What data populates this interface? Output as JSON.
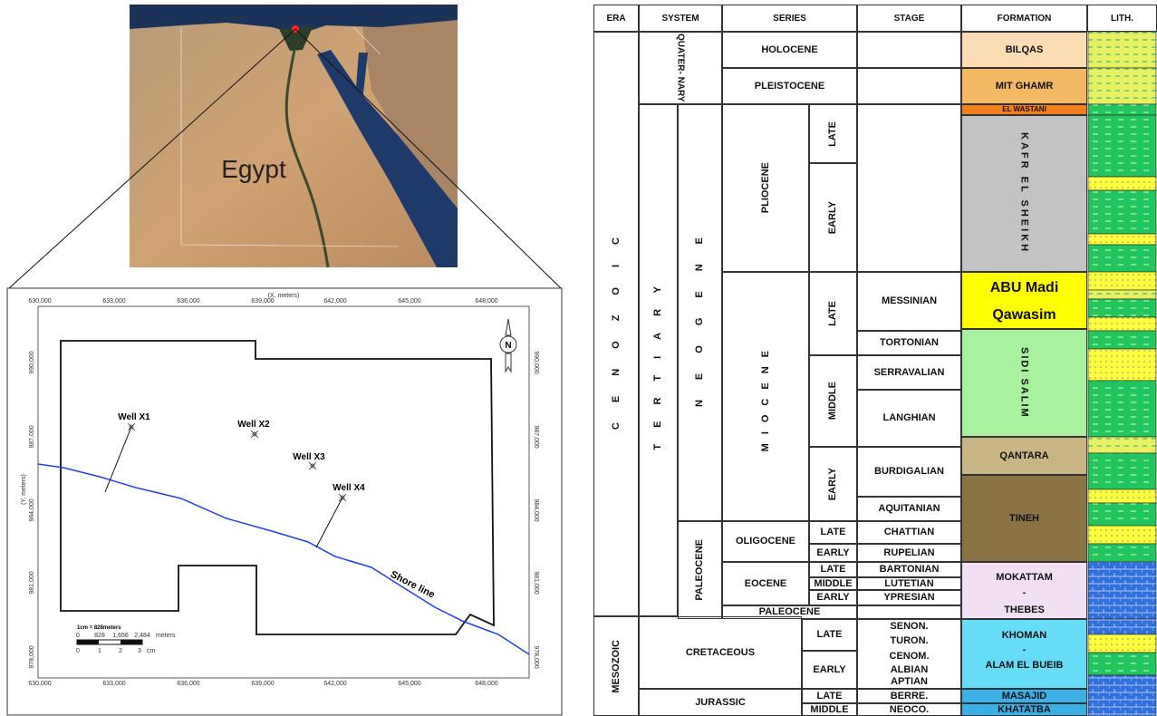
{
  "satellite_map": {
    "label": "Egypt"
  },
  "location_map": {
    "x_axis_title": "(X, meters)",
    "y_axis_title": "(Y, meters)",
    "x_ticks": [
      "630,000",
      "633,000",
      "636,000",
      "639,000",
      "642,000",
      "645,000",
      "648,000"
    ],
    "y_ticks": [
      "990,000",
      "987,000",
      "984,000",
      "981,000",
      "978,000"
    ],
    "wells": [
      "Well X1",
      "Well X2",
      "Well X3",
      "Well X4"
    ],
    "shore_label": "Shore line",
    "north": "N",
    "scale": {
      "title": "1cm = 828meters",
      "distances": [
        "0",
        "828",
        "1,656",
        "2,484",
        "meters"
      ],
      "cm": [
        "0",
        "1",
        "2",
        "3",
        "cm"
      ]
    }
  },
  "stratigraphy": {
    "headers": [
      "ERA",
      "SYSTEM",
      "SERIES",
      "STAGE",
      "FORMATION",
      "LITH."
    ],
    "eras": [
      "CENOZOIC",
      "MESOZOIC"
    ],
    "systems": [
      "QUATER- NARY",
      "TERTIARY",
      "CRETACEOUS",
      "JURASSIC"
    ],
    "subsystems": [
      "NEOGENE",
      "PALEOCENE"
    ],
    "series": [
      "HOLOCENE",
      "PLEISTOCENE",
      "PLIOCENE",
      "MIOCENE",
      "OLIGOCENE",
      "EOCENE",
      "PALEOCENE"
    ],
    "subseries": [
      "LATE",
      "EARLY",
      "LATE",
      "MIDDLE",
      "EARLY",
      "LATE",
      "EARLY",
      "LATE",
      "MIDDLE",
      "EARLY",
      "LATE",
      "EARLY",
      "LATE",
      "MIDDLE"
    ],
    "stages": [
      "MESSINIAN",
      "TORTONIAN",
      "SERRAVALIAN",
      "LANGHIAN",
      "BURDIGALIAN",
      "AQUITANIAN",
      "CHATTIAN",
      "RUPELIAN",
      "BARTONIAN",
      "LUTETIAN",
      "YPRESIAN",
      "SENON.",
      "TURON.",
      "CENOM.",
      "ALBIAN",
      "APTIAN",
      "BERRE.",
      "NEOCO."
    ],
    "formations": [
      "BILQAS",
      "MIT GHAMR",
      "EL WASTANI",
      "KAFR EL SHEIKH",
      "ABU Madi",
      "Qawasim",
      "SIDI SALIM",
      "QANTARA",
      "TINEH",
      "MOKATTAM",
      "-",
      "THEBES",
      "KHOMAN",
      "-",
      "ALAM EL BUEIB",
      "MASAJID",
      "KHATATBA"
    ]
  }
}
